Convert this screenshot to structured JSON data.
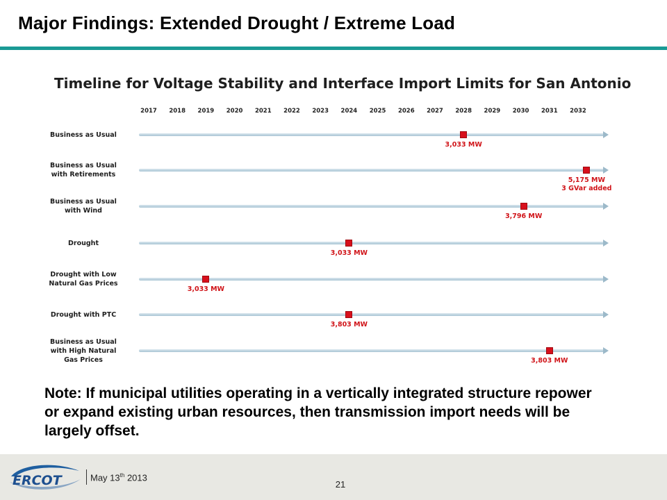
{
  "slide": {
    "title": "Major Findings:  Extended Drought / Extreme Load",
    "note": "Note:  If municipal utilities operating in a vertically integrated structure repower or expand existing urban resources, then transmission import needs will be largely offset."
  },
  "footer": {
    "logo_text": "ERCOT",
    "date_prefix": "May 13",
    "date_suffix": "th",
    "date_year": "2013",
    "page_number": "21"
  },
  "colors": {
    "accent_rule": "#1a9a95",
    "marker": "#d7101c",
    "marker_label": "#d01318",
    "footer_bg": "#e8e8e3"
  },
  "chart_data": {
    "type": "timeline",
    "title": "Timeline for Voltage Stability and Interface Import Limits for San Antonio",
    "years": [
      "2017",
      "2018",
      "2019",
      "2020",
      "2021",
      "2022",
      "2023",
      "2024",
      "2025",
      "2026",
      "2027",
      "2028",
      "2029",
      "2030",
      "2031",
      "2032"
    ],
    "scenarios": [
      {
        "label_lines": [
          "Business as Usual"
        ],
        "year": 2028,
        "value_lines": [
          "3,033 MW"
        ]
      },
      {
        "label_lines": [
          "Business as Usual",
          "with Retirements"
        ],
        "year": 2032.3,
        "value_lines": [
          "5,175 MW",
          "3 GVar added"
        ]
      },
      {
        "label_lines": [
          "Business as Usual",
          "with Wind"
        ],
        "year": 2030.1,
        "value_lines": [
          "3,796 MW"
        ]
      },
      {
        "label_lines": [
          "Drought"
        ],
        "year": 2024,
        "value_lines": [
          "3,033 MW"
        ]
      },
      {
        "label_lines": [
          "Drought with Low",
          "Natural Gas Prices"
        ],
        "year": 2019,
        "value_lines": [
          "3,033 MW"
        ]
      },
      {
        "label_lines": [
          "Drought with PTC"
        ],
        "year": 2024,
        "value_lines": [
          "3,803 MW"
        ]
      },
      {
        "label_lines": [
          "Business as Usual",
          "with High Natural",
          "Gas Prices"
        ],
        "year": 2031,
        "value_lines": [
          "3,803 MW"
        ]
      }
    ]
  }
}
